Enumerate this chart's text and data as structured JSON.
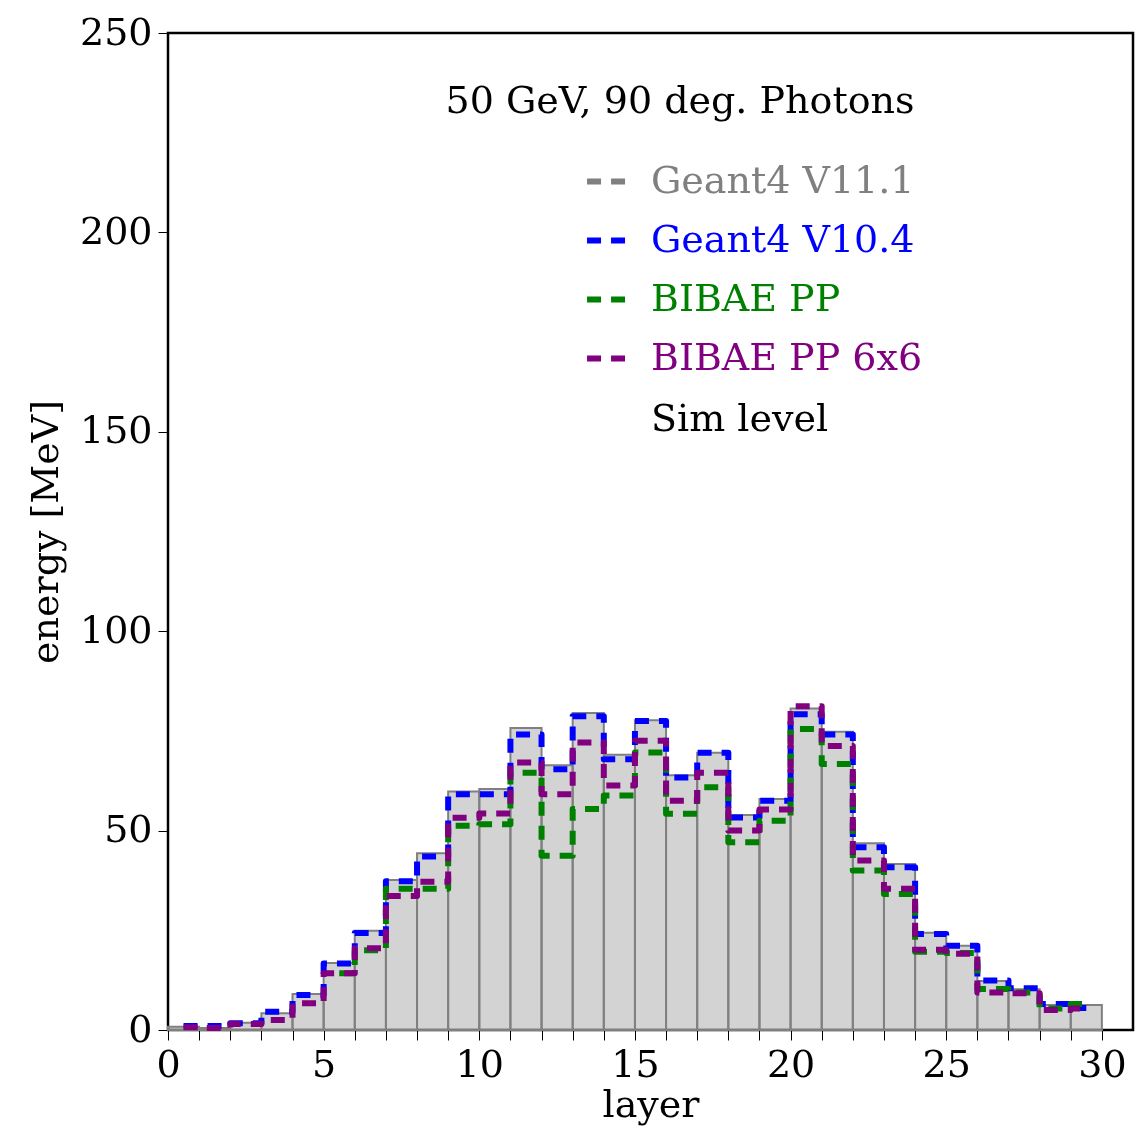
{
  "chart_data": {
    "type": "histogram",
    "title": "50 GeV, 90 deg. Photons",
    "xlabel": "layer",
    "ylabel": "energy [MeV]",
    "annotations": [
      "Sim level"
    ],
    "bins": [
      0,
      1,
      2,
      3,
      4,
      5,
      6,
      7,
      8,
      9,
      10,
      11,
      12,
      13,
      14,
      15,
      16,
      17,
      18,
      19,
      20,
      21,
      22,
      23,
      24,
      25,
      26,
      27,
      28,
      29,
      30
    ],
    "series": [
      {
        "name": "Geant4 V11.1",
        "color": "#808080",
        "values": [
          0.8,
          0.5,
          1.8,
          4.2,
          9,
          16.8,
          24.9,
          37.6,
          44.3,
          59.8,
          60.4,
          75.7,
          66.4,
          79.5,
          69,
          77.7,
          63.9,
          69.5,
          53.9,
          57.9,
          80.6,
          74.8,
          46.8,
          41.6,
          24.4,
          21.1,
          12.3,
          10.2,
          6.3,
          6.3
        ]
      },
      {
        "name": "Geant4 V10.4",
        "type": "step",
        "x": [
          0.5,
          1.5,
          2.5,
          3.5,
          4.5,
          5.5,
          6.5,
          7.5,
          8.5,
          9.5,
          10.5,
          11.5,
          12.5,
          13.5,
          14.5,
          15.5,
          16.5,
          17.5,
          18.5,
          19.5,
          20.5,
          21.5,
          22.5,
          23.5,
          24.5,
          25.5,
          26.5,
          27.5,
          28.5,
          29.5
        ],
        "color": "#0000ff",
        "values": [
          1,
          1,
          1.7,
          4.6,
          8.8,
          16.7,
          24.3,
          37.3,
          43.5,
          59.1,
          59.1,
          74.1,
          65.4,
          78.7,
          67.9,
          77.5,
          63.3,
          69.5,
          53.3,
          57.5,
          79.2,
          74.1,
          45.8,
          40.8,
          24.1,
          21.1,
          12.4,
          10.5,
          6.5,
          5.5
        ]
      },
      {
        "name": "BIBAE PP",
        "type": "step",
        "x": [
          5.5,
          6.5,
          7.5,
          8.5,
          9.5,
          10.5,
          11.5,
          12.5,
          13.5,
          14.5,
          15.5,
          16.5,
          17.5,
          18.5,
          19.5,
          20.5,
          21.5,
          22.5,
          23.5,
          24.5,
          25.5,
          26.5,
          27.5,
          28.5,
          29.5
        ],
        "color": "#008000",
        "values": [
          14.2,
          20,
          35.4,
          35.4,
          51.2,
          51.6,
          64.5,
          43.7,
          55.4,
          58.8,
          69.6,
          54.2,
          60.9,
          47.1,
          52.5,
          75.5,
          66.7,
          40,
          34.1,
          19.6,
          19.3,
          10.3,
          9.4,
          5.4,
          6.5
        ]
      },
      {
        "name": "BIBAE PP 6x6",
        "type": "step",
        "x": [
          0.5,
          1.5,
          2.5,
          3.5,
          4.5,
          5.5,
          6.5,
          7.5,
          8.5,
          9.5,
          10.5,
          11.5,
          12.5,
          13.5,
          14.5,
          15.5,
          16.5,
          17.5,
          18.5,
          19.5,
          20.5,
          21.5,
          22.5,
          23.5,
          24.5,
          25.5,
          26.5,
          27.5,
          28.5,
          29.5
        ],
        "color": "#800080",
        "values": [
          0.7,
          0.5,
          1.5,
          2.5,
          6.7,
          14.2,
          20.5,
          33.6,
          37.2,
          53.2,
          54.3,
          67.1,
          59.1,
          72.1,
          61.3,
          72.5,
          57.5,
          64.5,
          50,
          55.3,
          81.2,
          71.2,
          42.5,
          35.4,
          20.1,
          19.1,
          9.4,
          9.2,
          5,
          5.4
        ]
      }
    ],
    "line_style": "dashed",
    "legend": "top right",
    "grid": false,
    "xlim": [
      0,
      31
    ],
    "ylim": [
      0,
      250
    ],
    "xticks": [
      0,
      {
        "value": 1,
        "label": null
      },
      {
        "value": 2,
        "label": null
      },
      {
        "value": 3,
        "label": null
      },
      {
        "value": 4,
        "label": null
      },
      5,
      {
        "value": 6,
        "label": null
      },
      {
        "value": 7,
        "label": null
      },
      {
        "value": 8,
        "label": null
      },
      {
        "value": 9,
        "label": null
      },
      10,
      {
        "value": 11,
        "label": null
      },
      {
        "value": 12,
        "label": null
      },
      {
        "value": 13,
        "label": null
      },
      {
        "value": 14,
        "label": null
      },
      15,
      {
        "value": 16,
        "label": null
      },
      {
        "value": 17,
        "label": null
      },
      {
        "value": 18,
        "label": null
      },
      {
        "value": 19,
        "label": null
      },
      20,
      {
        "value": 21,
        "label": null
      },
      {
        "value": 22,
        "label": null
      },
      {
        "value": 23,
        "label": null
      },
      {
        "value": 24,
        "label": null
      },
      25,
      {
        "value": 26,
        "label": null
      },
      {
        "value": 27,
        "label": null
      },
      {
        "value": 28,
        "label": null
      },
      {
        "value": 29,
        "label": null
      },
      30
    ],
    "yticks": [
      0,
      50,
      100,
      150,
      200,
      250
    ]
  }
}
